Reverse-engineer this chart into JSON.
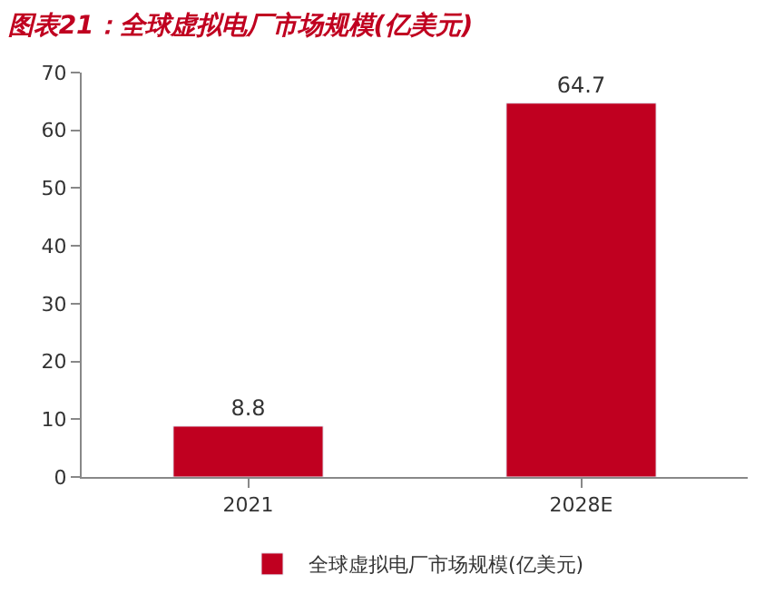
{
  "chart_data": {
    "type": "bar",
    "title": "图表21：全球虚拟电厂市场规模(亿美元)",
    "categories": [
      "2021",
      "2028E"
    ],
    "series": [
      {
        "name": "全球虚拟电厂市场规模(亿美元)",
        "color": "#c00020",
        "values": [
          8.8,
          64.7
        ]
      }
    ],
    "ylim": [
      0,
      70
    ],
    "yticks": [
      0,
      10,
      20,
      30,
      40,
      50,
      60,
      70
    ],
    "legend": "bottom",
    "data_labels": true
  }
}
